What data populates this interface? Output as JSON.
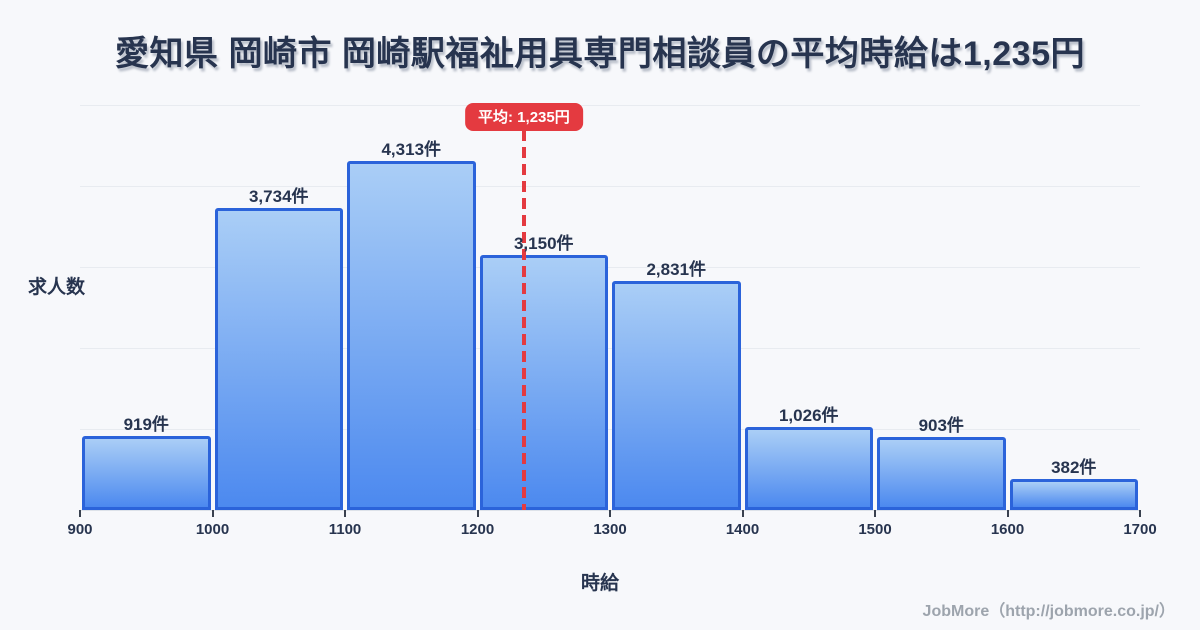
{
  "title": "愛知県 岡崎市 岡崎駅福祉用具専門相談員の平均時給は1,235円",
  "footer": "JobMore（http://jobmore.co.jp/）",
  "colors": {
    "background": "#f7f8fb",
    "title_text": "#27344f",
    "bar_border": "#2b63da",
    "bar_fill_top": "#aacef6",
    "bar_fill_bottom": "#4c89ef",
    "average_red": "#e43a40",
    "grid_line": "#e8ebf0",
    "footer_text": "#9da4ad"
  },
  "chart_data": {
    "type": "bar",
    "subtype": "histogram",
    "title": "愛知県 岡崎市 岡崎駅福祉用具専門相談員の平均時給は1,235円",
    "xlabel": "時給",
    "ylabel": "求人数",
    "bin_edges": [
      900,
      1000,
      1100,
      1200,
      1300,
      1400,
      1500,
      1600,
      1700
    ],
    "x_tick_labels": [
      "900",
      "1000",
      "1100",
      "1200",
      "1300",
      "1400",
      "1500",
      "1600",
      "1700"
    ],
    "values": [
      919,
      3734,
      4313,
      3150,
      2831,
      1026,
      903,
      382
    ],
    "bar_labels": [
      "919件",
      "3,734件",
      "4,313件",
      "3,150件",
      "2,831件",
      "1,026件",
      "903件",
      "382件"
    ],
    "average_value": 1235,
    "average_label": "平均: 1,235円",
    "ylim": [
      0,
      5000
    ],
    "grid_step": 1000,
    "grid": "horizontal",
    "legend": "none"
  }
}
